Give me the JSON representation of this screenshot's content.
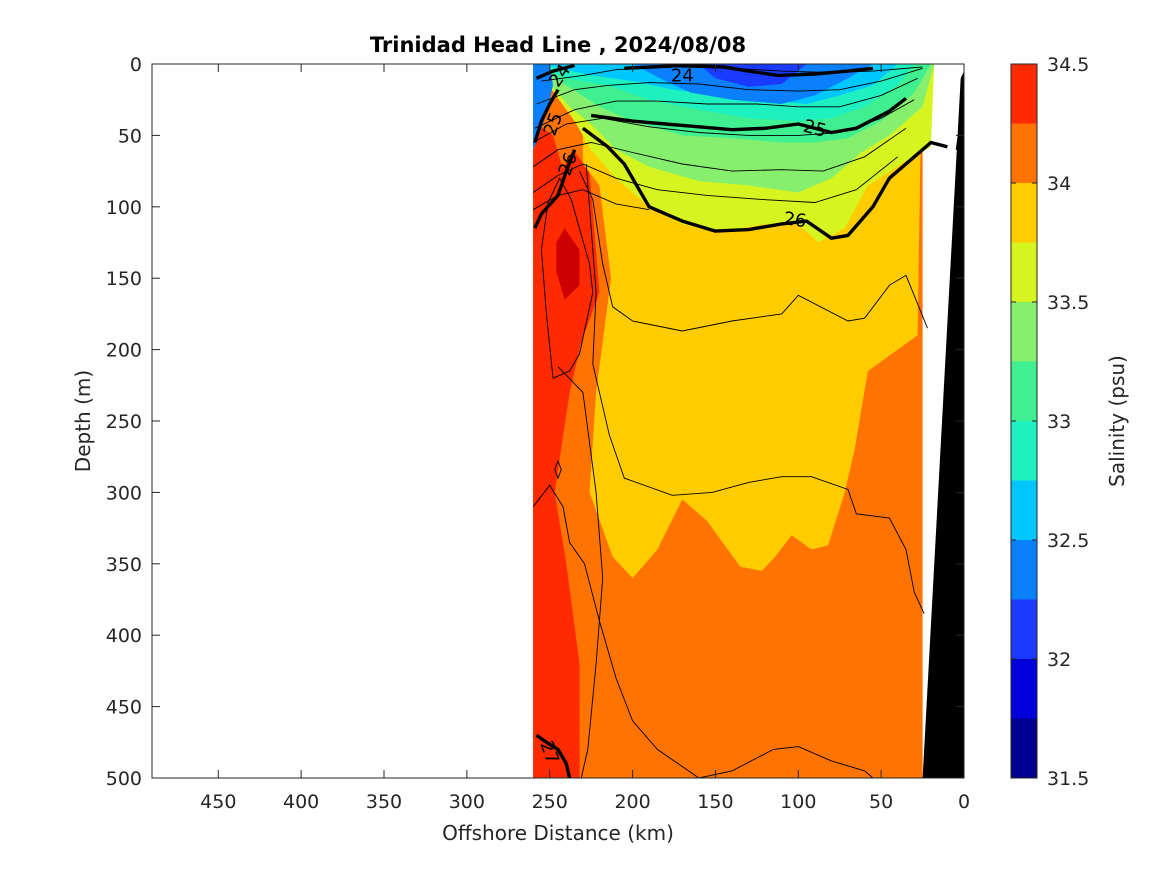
{
  "chart_data": {
    "type": "heatmap",
    "title": "Trinidad Head Line , 2024/08/08",
    "xlabel": "Offshore Distance (km)",
    "ylabel": "Depth (m)",
    "colorbar_label": "Salinity (psu)",
    "xlim": [
      490,
      0
    ],
    "ylim": [
      0,
      500
    ],
    "x_reversed": true,
    "y_reversed": true,
    "x_ticks": [
      450,
      400,
      350,
      300,
      250,
      200,
      150,
      100,
      50,
      0
    ],
    "y_ticks": [
      0,
      50,
      100,
      150,
      200,
      250,
      300,
      350,
      400,
      450,
      500
    ],
    "colorbar": {
      "range": [
        31.5,
        34.5
      ],
      "levels": [
        31.5,
        31.75,
        32.0,
        32.25,
        32.5,
        32.75,
        33.0,
        33.25,
        33.5,
        33.75,
        34.0,
        34.25,
        34.5
      ],
      "tick_values": [
        31.5,
        32,
        32.5,
        33,
        33.5,
        34,
        34.5
      ],
      "tick_labels": [
        "31.5",
        "32",
        "32.5",
        "33",
        "33.5",
        "34",
        "34.5"
      ],
      "colors": [
        "#00008F",
        "#0000D8",
        "#1A3AFF",
        "#0A80FF",
        "#00C8FF",
        "#1EF0C0",
        "#40F090",
        "#86F06E",
        "#D6F520",
        "#FFCC00",
        "#FF7300",
        "#FF2A00",
        "#CC0000"
      ]
    },
    "salinity_zones_approx": [
      {
        "range": "33.75-34.0",
        "location": "100-300 m, 60-230 km offshore"
      },
      {
        "range": "34.0-34.25",
        "location": "below 300 m and inshore of 25 km"
      },
      {
        "range": "34.25-34.5",
        "location": "core near 240 km, 120-180 m"
      },
      {
        "range": "32.0-32.75",
        "location": "surface layer 0-40 m"
      }
    ],
    "density_contours": {
      "labeled_values": [
        "24",
        "25",
        "26",
        "27"
      ],
      "bold_levels": [
        24,
        25,
        26,
        27
      ],
      "line_color": "#000000"
    },
    "data_extent_km": [
      260,
      0
    ],
    "bathymetry_color": "#000000",
    "grid": false
  }
}
